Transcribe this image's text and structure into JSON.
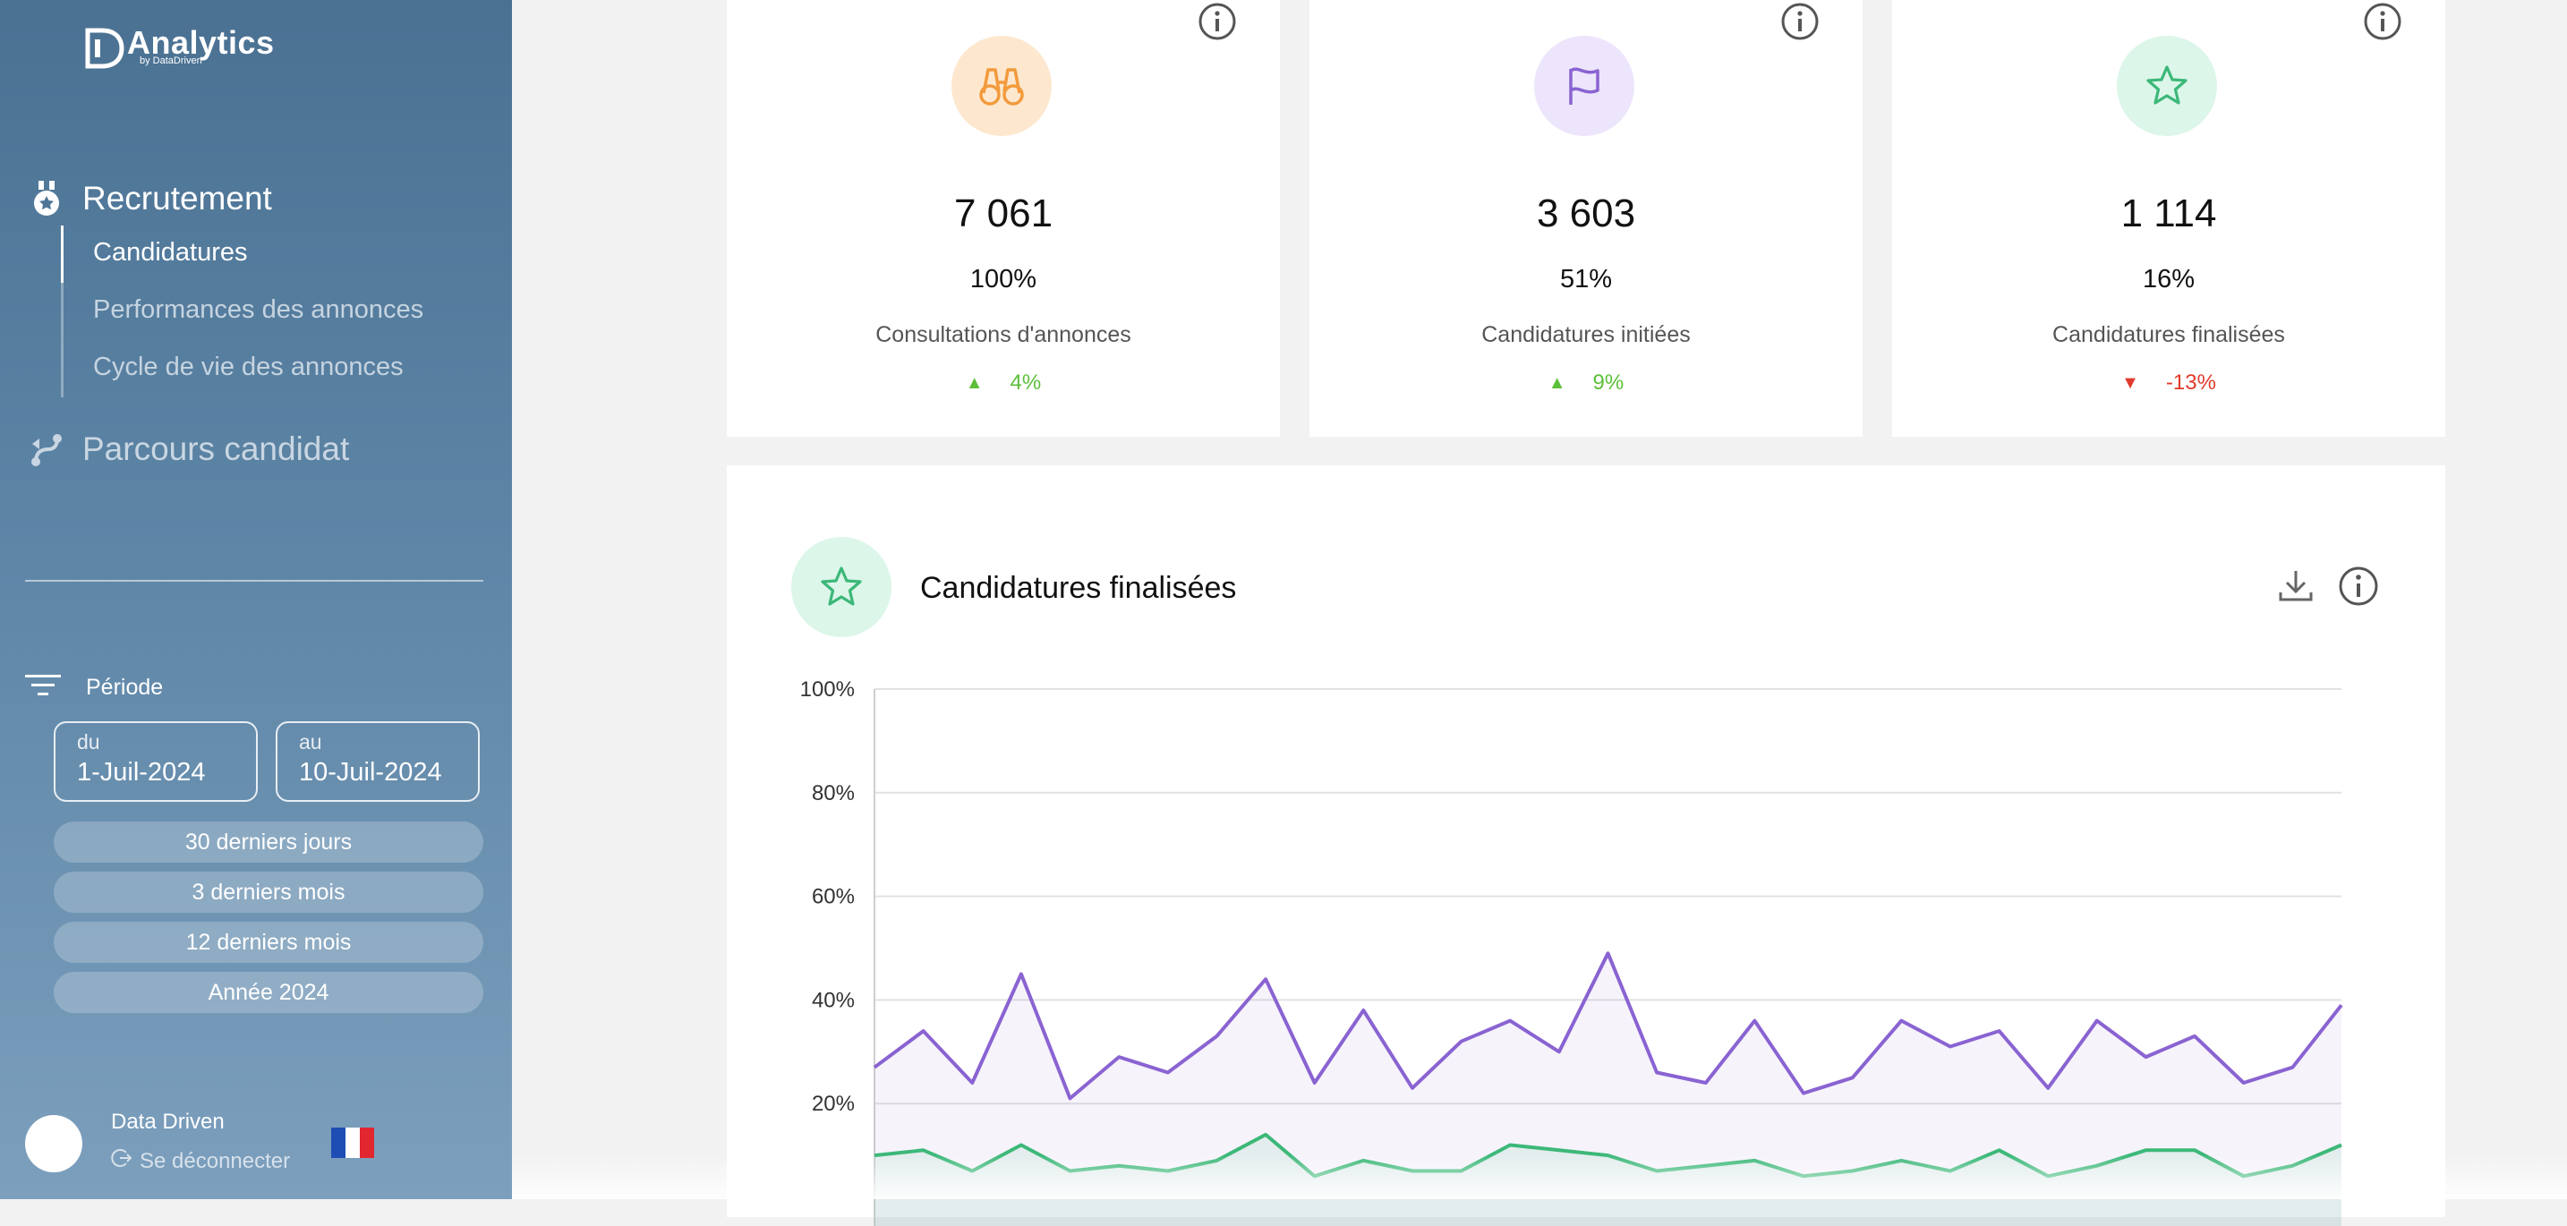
{
  "brand": {
    "name": "Analytics",
    "sub": "by DataDriven"
  },
  "nav": {
    "section1": {
      "label": "Recrutement",
      "icon": "medal-icon"
    },
    "items": [
      {
        "label": "Candidatures",
        "active": true
      },
      {
        "label": "Performances des annonces",
        "active": false
      },
      {
        "label": "Cycle de vie des annonces",
        "active": false
      }
    ],
    "section2": {
      "label": "Parcours candidat",
      "icon": "journey-icon"
    }
  },
  "filters": {
    "title": "Période",
    "from": {
      "label": "du",
      "value": "1-Juil-2024"
    },
    "to": {
      "label": "au",
      "value": "10-Juil-2024"
    },
    "presets": [
      "30 derniers jours",
      "3 derniers mois",
      "12 derniers mois",
      "Année 2024"
    ]
  },
  "user": {
    "name": "Data Driven",
    "logout": "Se déconnecter",
    "language": "fr"
  },
  "kpis": [
    {
      "value": "7 061",
      "percent": "100%",
      "label": "Consultations d'annonces",
      "trend": "4%",
      "direction": "up",
      "icon": "binoculars-icon",
      "color": "#f29a3c",
      "bg": "#fde8cf"
    },
    {
      "value": "3 603",
      "percent": "51%",
      "label": "Candidatures initiées",
      "trend": "9%",
      "direction": "up",
      "icon": "flag-icon",
      "color": "#8a63d2",
      "bg": "#ece5fb"
    },
    {
      "value": "1 114",
      "percent": "16%",
      "label": "Candidatures finalisées",
      "trend": "-13%",
      "direction": "down",
      "icon": "star-icon",
      "color": "#3cb878",
      "bg": "#dcf6ea"
    }
  ],
  "chart": {
    "title": "Candidatures finalisées"
  },
  "chart_data": {
    "type": "area",
    "yticks": [
      "100%",
      "80%",
      "60%",
      "40%",
      "20%"
    ],
    "ylim": [
      0,
      100
    ],
    "grid": true,
    "series": [
      {
        "color": "#8a63d2",
        "values": [
          27,
          34,
          24,
          45,
          21,
          29,
          26,
          33,
          44,
          24,
          38,
          23,
          32,
          36,
          30,
          49,
          26,
          24,
          36,
          22,
          25,
          36,
          31,
          34,
          23,
          36,
          29,
          33,
          24,
          27,
          39
        ]
      },
      {
        "color": "#3cb878",
        "values": [
          10,
          11,
          7,
          12,
          7,
          8,
          7,
          9,
          14,
          6,
          9,
          7,
          7,
          12,
          11,
          10,
          7,
          8,
          9,
          6,
          7,
          9,
          7,
          11,
          6,
          8,
          11,
          11,
          6,
          8,
          12
        ]
      }
    ]
  }
}
